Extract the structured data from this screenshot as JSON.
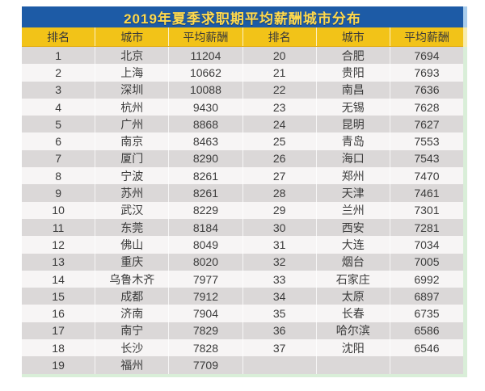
{
  "table": {
    "title": "2019年夏季求职期平均薪酬城市分布",
    "columns": [
      "排名",
      "城市",
      "平均薪酬",
      "排名",
      "城市",
      "平均薪酬"
    ],
    "rows": [
      [
        "1",
        "北京",
        "11204",
        "20",
        "合肥",
        "7694"
      ],
      [
        "2",
        "上海",
        "10662",
        "21",
        "贵阳",
        "7693"
      ],
      [
        "3",
        "深圳",
        "10088",
        "22",
        "南昌",
        "7636"
      ],
      [
        "4",
        "杭州",
        "9430",
        "23",
        "无锡",
        "7628"
      ],
      [
        "5",
        "广州",
        "8868",
        "24",
        "昆明",
        "7627"
      ],
      [
        "6",
        "南京",
        "8463",
        "25",
        "青岛",
        "7553"
      ],
      [
        "7",
        "厦门",
        "8290",
        "26",
        "海口",
        "7543"
      ],
      [
        "8",
        "宁波",
        "8261",
        "27",
        "郑州",
        "7470"
      ],
      [
        "9",
        "苏州",
        "8261",
        "28",
        "天津",
        "7461"
      ],
      [
        "10",
        "武汉",
        "8229",
        "29",
        "兰州",
        "7301"
      ],
      [
        "11",
        "东莞",
        "8184",
        "30",
        "西安",
        "7281"
      ],
      [
        "12",
        "佛山",
        "8049",
        "31",
        "大连",
        "7034"
      ],
      [
        "13",
        "重庆",
        "8020",
        "32",
        "烟台",
        "7005"
      ],
      [
        "14",
        "乌鲁木齐",
        "7977",
        "33",
        "石家庄",
        "6992"
      ],
      [
        "15",
        "成都",
        "7912",
        "34",
        "太原",
        "6897"
      ],
      [
        "16",
        "济南",
        "7904",
        "35",
        "长春",
        "6735"
      ],
      [
        "17",
        "南宁",
        "7829",
        "36",
        "哈尔滨",
        "6586"
      ],
      [
        "18",
        "长沙",
        "7828",
        "37",
        "沈阳",
        "6546"
      ],
      [
        "19",
        "福州",
        "7709",
        "",
        "",
        ""
      ]
    ]
  },
  "colors": {
    "title_bar_bg": "#1d5ba6",
    "title_text": "#ffd94d",
    "header_bg": "#f2c318",
    "header_text": "#3a3a3a",
    "row_odd_bg": "#dbd8d8",
    "row_even_bg": "#f7f5f5",
    "data_text": "#3b3b3b",
    "edge_strip_green": "#d9eed8",
    "edge_strip_blue": "#a9cdec",
    "edge_strip_yellow": "#f7ecae"
  },
  "chart_data": {
    "type": "table",
    "title": "2019年夏季求职期平均薪酬城市分布",
    "columns": [
      "排名",
      "城市",
      "平均薪酬"
    ],
    "entries": [
      {
        "rank": 1,
        "city": "北京",
        "salary": 11204
      },
      {
        "rank": 2,
        "city": "上海",
        "salary": 10662
      },
      {
        "rank": 3,
        "city": "深圳",
        "salary": 10088
      },
      {
        "rank": 4,
        "city": "杭州",
        "salary": 9430
      },
      {
        "rank": 5,
        "city": "广州",
        "salary": 8868
      },
      {
        "rank": 6,
        "city": "南京",
        "salary": 8463
      },
      {
        "rank": 7,
        "city": "厦门",
        "salary": 8290
      },
      {
        "rank": 8,
        "city": "宁波",
        "salary": 8261
      },
      {
        "rank": 9,
        "city": "苏州",
        "salary": 8261
      },
      {
        "rank": 10,
        "city": "武汉",
        "salary": 8229
      },
      {
        "rank": 11,
        "city": "东莞",
        "salary": 8184
      },
      {
        "rank": 12,
        "city": "佛山",
        "salary": 8049
      },
      {
        "rank": 13,
        "city": "重庆",
        "salary": 8020
      },
      {
        "rank": 14,
        "city": "乌鲁木齐",
        "salary": 7977
      },
      {
        "rank": 15,
        "city": "成都",
        "salary": 7912
      },
      {
        "rank": 16,
        "city": "济南",
        "salary": 7904
      },
      {
        "rank": 17,
        "city": "南宁",
        "salary": 7829
      },
      {
        "rank": 18,
        "city": "长沙",
        "salary": 7828
      },
      {
        "rank": 19,
        "city": "福州",
        "salary": 7709
      },
      {
        "rank": 20,
        "city": "合肥",
        "salary": 7694
      },
      {
        "rank": 21,
        "city": "贵阳",
        "salary": 7693
      },
      {
        "rank": 22,
        "city": "南昌",
        "salary": 7636
      },
      {
        "rank": 23,
        "city": "无锡",
        "salary": 7628
      },
      {
        "rank": 24,
        "city": "昆明",
        "salary": 7627
      },
      {
        "rank": 25,
        "city": "青岛",
        "salary": 7553
      },
      {
        "rank": 26,
        "city": "海口",
        "salary": 7543
      },
      {
        "rank": 27,
        "city": "郑州",
        "salary": 7470
      },
      {
        "rank": 28,
        "city": "天津",
        "salary": 7461
      },
      {
        "rank": 29,
        "city": "兰州",
        "salary": 7301
      },
      {
        "rank": 30,
        "city": "西安",
        "salary": 7281
      },
      {
        "rank": 31,
        "city": "大连",
        "salary": 7034
      },
      {
        "rank": 32,
        "city": "烟台",
        "salary": 7005
      },
      {
        "rank": 33,
        "city": "石家庄",
        "salary": 6992
      },
      {
        "rank": 34,
        "city": "太原",
        "salary": 6897
      },
      {
        "rank": 35,
        "city": "长春",
        "salary": 6735
      },
      {
        "rank": 36,
        "city": "哈尔滨",
        "salary": 6586
      },
      {
        "rank": 37,
        "city": "沈阳",
        "salary": 6546
      }
    ]
  }
}
